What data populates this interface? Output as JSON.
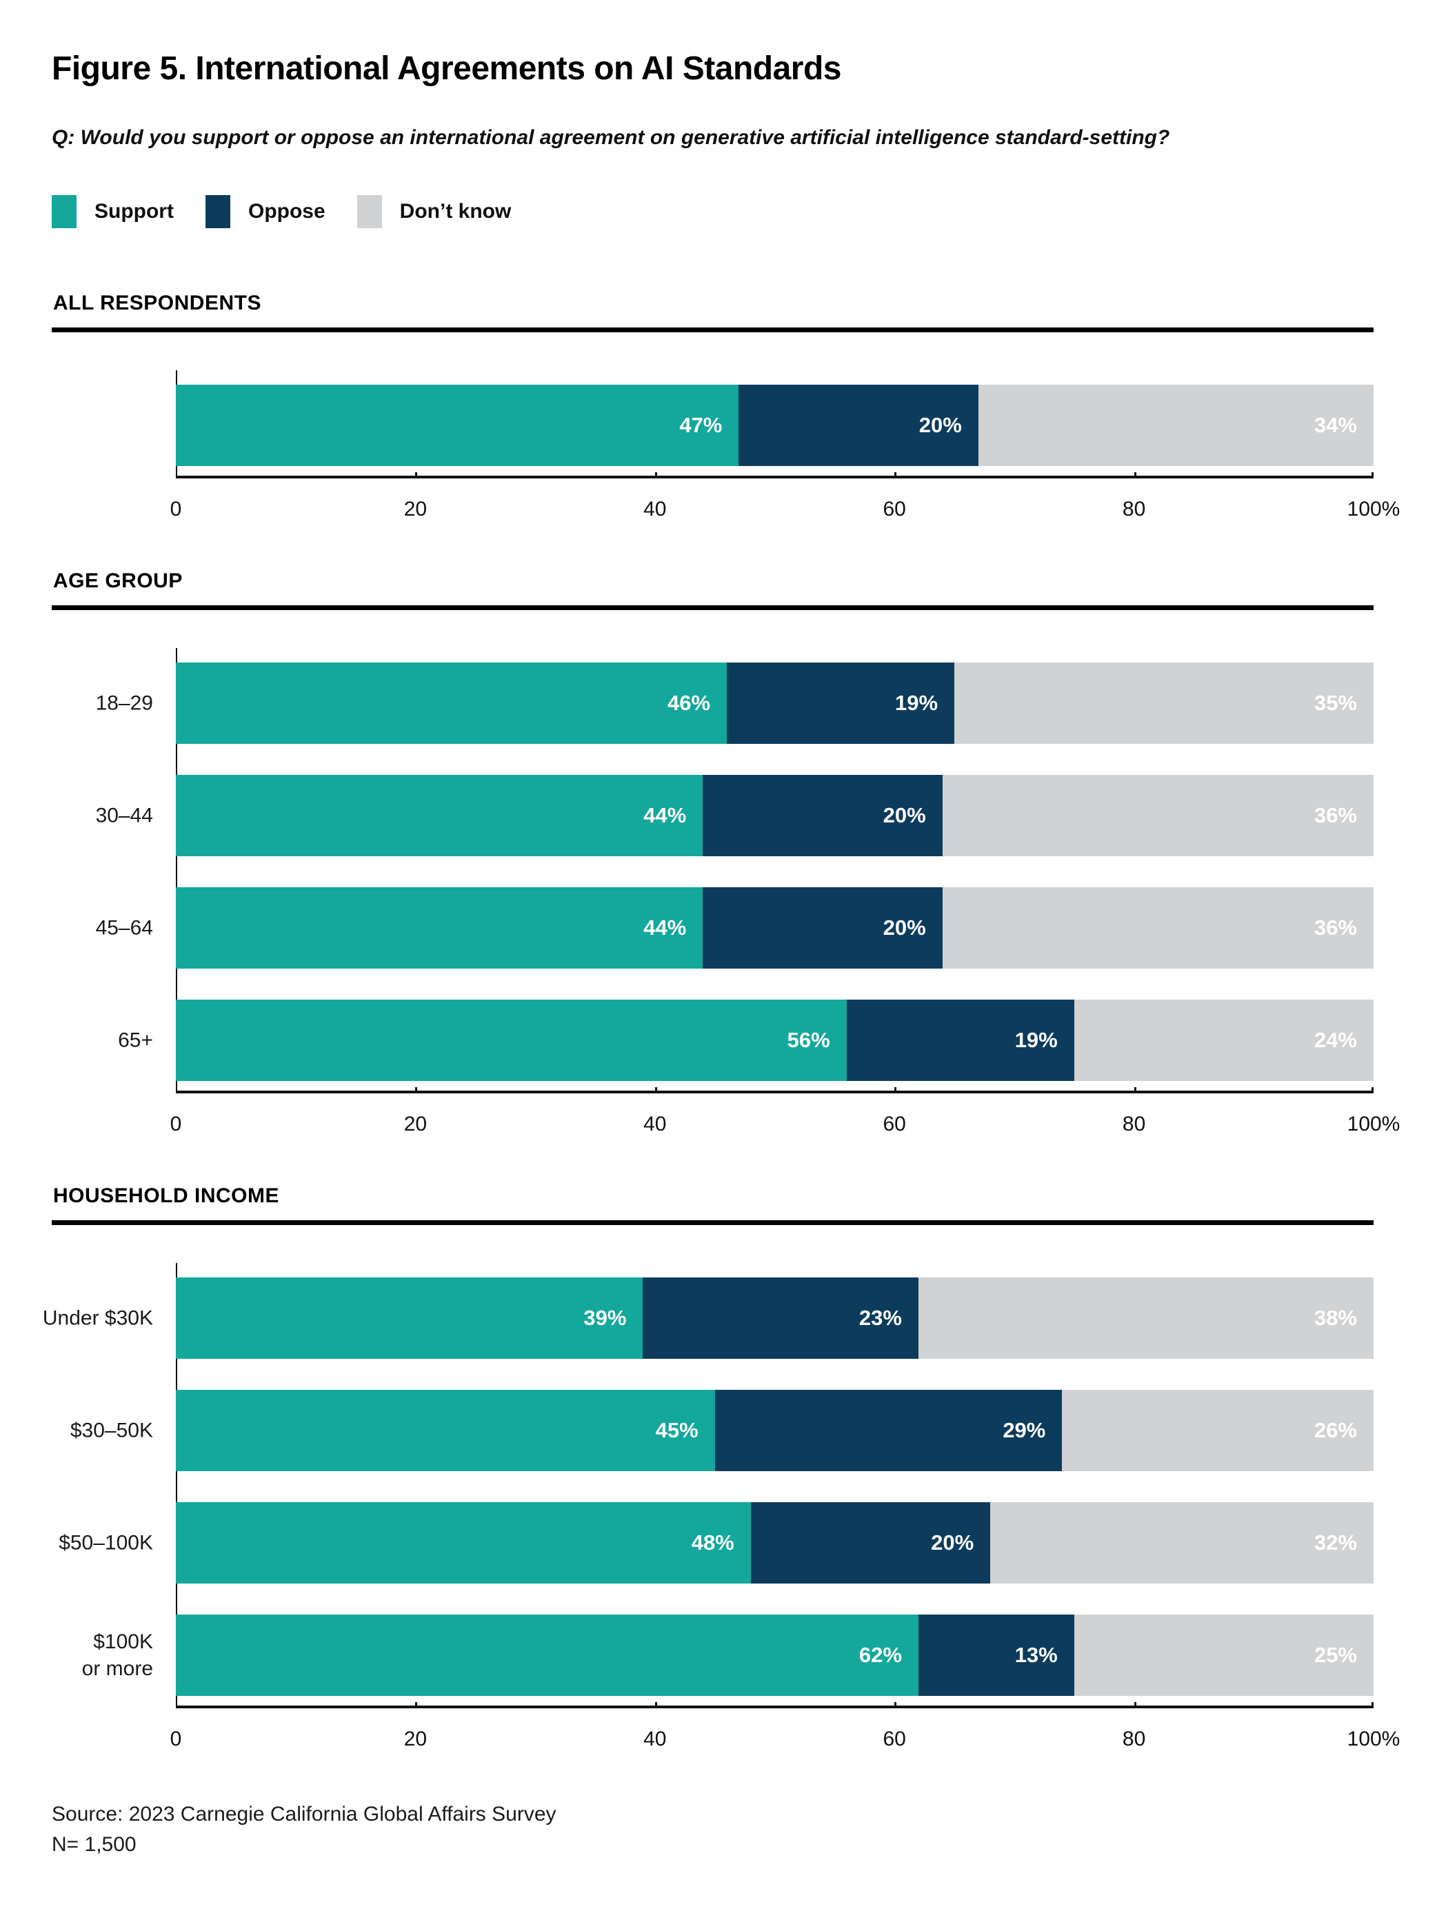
{
  "title": "Figure 5. International Agreements on AI Standards",
  "question": "Q: Would you support or oppose an international agreement on generative artificial intelligence standard-setting?",
  "colors": {
    "support": "#13A89B",
    "oppose": "#0D3B5C",
    "dontknow": "#D1D2D4"
  },
  "legend": {
    "items": [
      {
        "label": "Support"
      },
      {
        "label": "Oppose"
      },
      {
        "label": "Don’t know"
      }
    ]
  },
  "chart_data": [
    {
      "type": "bar",
      "stacked": true,
      "orientation": "horizontal",
      "section": "ALL RESPONDENTS",
      "categories": [
        ""
      ],
      "series": [
        {
          "name": "Support",
          "values": [
            47
          ]
        },
        {
          "name": "Oppose",
          "values": [
            20
          ]
        },
        {
          "name": "Don’t know",
          "values": [
            34
          ]
        }
      ],
      "value_suffix": "%",
      "xlim": [
        0,
        100
      ],
      "xticks": [
        "0",
        "20",
        "40",
        "60",
        "80",
        "100%"
      ],
      "grid": false
    },
    {
      "type": "bar",
      "stacked": true,
      "orientation": "horizontal",
      "section": "AGE GROUP",
      "categories": [
        "18–29",
        "30–44",
        "45–64",
        "65+"
      ],
      "series": [
        {
          "name": "Support",
          "values": [
            46,
            44,
            44,
            56
          ]
        },
        {
          "name": "Oppose",
          "values": [
            19,
            20,
            20,
            19
          ]
        },
        {
          "name": "Don’t know",
          "values": [
            35,
            36,
            36,
            24
          ]
        }
      ],
      "value_suffix": "%",
      "xlim": [
        0,
        100
      ],
      "xticks": [
        "0",
        "20",
        "40",
        "60",
        "80",
        "100%"
      ],
      "grid": false
    },
    {
      "type": "bar",
      "stacked": true,
      "orientation": "horizontal",
      "section": "HOUSEHOLD INCOME",
      "categories": [
        "Under $30K",
        "$30–50K",
        "$50–100K",
        "$100K\nor more"
      ],
      "series": [
        {
          "name": "Support",
          "values": [
            39,
            45,
            48,
            62
          ]
        },
        {
          "name": "Oppose",
          "values": [
            23,
            29,
            20,
            13
          ]
        },
        {
          "name": "Don’t know",
          "values": [
            38,
            26,
            32,
            25
          ]
        }
      ],
      "value_suffix": "%",
      "xlim": [
        0,
        100
      ],
      "xticks": [
        "0",
        "20",
        "40",
        "60",
        "80",
        "100%"
      ],
      "grid": false
    }
  ],
  "source": {
    "line1": "Source: 2023 Carnegie California Global Affairs Survey",
    "line2": "N= 1,500"
  }
}
